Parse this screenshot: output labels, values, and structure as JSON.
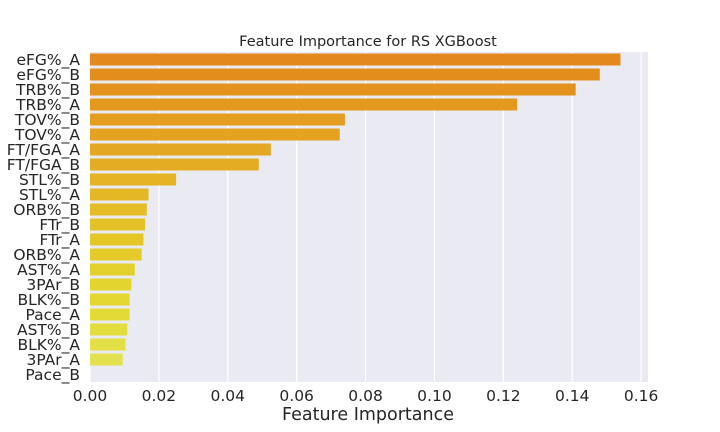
{
  "chart_data": {
    "type": "bar",
    "orientation": "horizontal",
    "title": "Feature Importance for RS XGBoost",
    "xlabel": "Feature Importance",
    "ylabel": "",
    "xlim": [
      0,
      0.162
    ],
    "xticks": [
      "0.00",
      "0.02",
      "0.04",
      "0.06",
      "0.08",
      "0.10",
      "0.12",
      "0.14",
      "0.16"
    ],
    "grid": true,
    "categories": [
      "eFG%_A",
      "eFG%_B",
      "TRB%_B",
      "TRB%_A",
      "TOV%_B",
      "TOV%_A",
      "FT/FGA_A",
      "FT/FGA_B",
      "STL%_B",
      "STL%_A",
      "ORB%_B",
      "FTr_B",
      "FTr_A",
      "ORB%_A",
      "AST%_A",
      "3PAr_B",
      "BLK%_B",
      "Pace_A",
      "AST%_B",
      "BLK%_A",
      "3PAr_A",
      "Pace_B"
    ],
    "values": [
      0.154,
      0.148,
      0.141,
      0.124,
      0.074,
      0.0725,
      0.0525,
      0.049,
      0.025,
      0.017,
      0.0165,
      0.016,
      0.0155,
      0.015,
      0.013,
      0.012,
      0.0115,
      0.0115,
      0.0108,
      0.0103,
      0.0095,
      0.0
    ],
    "colors": [
      "#e3881c",
      "#e38d1c",
      "#e3931d",
      "#e3981e",
      "#e49d1f",
      "#e4a220",
      "#e4a721",
      "#e4ac22",
      "#e4b223",
      "#e4b724",
      "#e4bc25",
      "#e4c126",
      "#e4c627",
      "#e4cb29",
      "#e4d02b",
      "#e4d42e",
      "#e4d732",
      "#e4da37",
      "#e3dd3e",
      "#e3df46",
      "#e3e150",
      "#e3e35a"
    ],
    "background": "#eaeaf2",
    "gridColor": "#ffffff"
  }
}
